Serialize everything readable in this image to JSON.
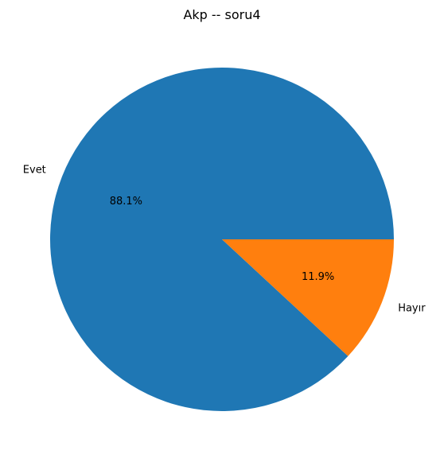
{
  "chart_data": {
    "type": "pie",
    "title": "Akp -- soru4",
    "categories": [
      "Evet",
      "Hayır"
    ],
    "values": [
      88.1,
      11.9
    ],
    "value_labels": [
      "88.1%",
      "11.9%"
    ],
    "colors": [
      "#1f77b4",
      "#ff7f0e"
    ],
    "start_angle_deg": 0,
    "direction": "counterclockwise",
    "legend": "none"
  }
}
